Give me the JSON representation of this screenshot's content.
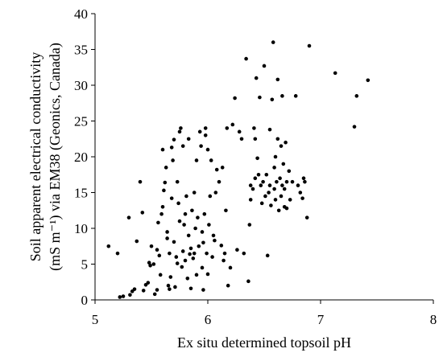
{
  "chart_data": {
    "type": "scatter",
    "xlabel": "Ex situ determined topsoil pH",
    "ylabel_line1": "Soil apparent electrical conductivity",
    "ylabel_line2": "(mS m⁻¹) via EM38 (Geonics, Canada)",
    "xlim": [
      5,
      8
    ],
    "ylim": [
      0,
      40
    ],
    "x_ticks": [
      5,
      6,
      7,
      8
    ],
    "y_ticks": [
      0,
      5,
      10,
      15,
      20,
      25,
      30,
      35,
      40
    ],
    "grid": false,
    "legend": "none",
    "point_color": "#000000",
    "points": [
      [
        5.12,
        7.5
      ],
      [
        5.2,
        6.5
      ],
      [
        5.22,
        0.4
      ],
      [
        5.25,
        0.5
      ],
      [
        5.3,
        11.5
      ],
      [
        5.31,
        0.7
      ],
      [
        5.33,
        1.2
      ],
      [
        5.35,
        1.5
      ],
      [
        5.37,
        8.2
      ],
      [
        5.4,
        16.5
      ],
      [
        5.42,
        12.2
      ],
      [
        5.43,
        1.3
      ],
      [
        5.45,
        2.1
      ],
      [
        5.47,
        2.4
      ],
      [
        5.48,
        5.2
      ],
      [
        5.49,
        4.8
      ],
      [
        5.5,
        7.5
      ],
      [
        5.52,
        5.0
      ],
      [
        5.53,
        0.8
      ],
      [
        5.55,
        1.4
      ],
      [
        5.55,
        7.0
      ],
      [
        5.56,
        10.8
      ],
      [
        5.57,
        6.2
      ],
      [
        5.58,
        3.5
      ],
      [
        5.59,
        12.0
      ],
      [
        5.6,
        13.0
      ],
      [
        5.6,
        21.0
      ],
      [
        5.61,
        15.3
      ],
      [
        5.62,
        16.4
      ],
      [
        5.63,
        18.5
      ],
      [
        5.64,
        9.5
      ],
      [
        5.64,
        8.6
      ],
      [
        5.65,
        2.0
      ],
      [
        5.66,
        1.5
      ],
      [
        5.66,
        6.5
      ],
      [
        5.67,
        3.2
      ],
      [
        5.68,
        14.2
      ],
      [
        5.68,
        21.3
      ],
      [
        5.69,
        19.5
      ],
      [
        5.7,
        22.4
      ],
      [
        5.7,
        8.1
      ],
      [
        5.71,
        1.8
      ],
      [
        5.72,
        6.0
      ],
      [
        5.73,
        5.1
      ],
      [
        5.73,
        16.5
      ],
      [
        5.74,
        13.5
      ],
      [
        5.75,
        11.0
      ],
      [
        5.75,
        23.5
      ],
      [
        5.76,
        24.0
      ],
      [
        5.77,
        4.6
      ],
      [
        5.78,
        6.8
      ],
      [
        5.78,
        21.5
      ],
      [
        5.79,
        10.5
      ],
      [
        5.8,
        12.0
      ],
      [
        5.8,
        5.5
      ],
      [
        5.81,
        14.5
      ],
      [
        5.82,
        3.0
      ],
      [
        5.83,
        9.0
      ],
      [
        5.83,
        22.5
      ],
      [
        5.84,
        6.4
      ],
      [
        5.85,
        7.2
      ],
      [
        5.85,
        1.6
      ],
      [
        5.86,
        12.5
      ],
      [
        5.87,
        5.8
      ],
      [
        5.88,
        15.0
      ],
      [
        5.88,
        6.5
      ],
      [
        5.89,
        10.0
      ],
      [
        5.9,
        19.5
      ],
      [
        5.9,
        3.5
      ],
      [
        5.91,
        11.5
      ],
      [
        5.92,
        7.5
      ],
      [
        5.93,
        23.5
      ],
      [
        5.94,
        21.5
      ],
      [
        5.95,
        9.5
      ],
      [
        5.95,
        4.5
      ],
      [
        5.96,
        1.4
      ],
      [
        5.96,
        8.0
      ],
      [
        5.97,
        12.0
      ],
      [
        5.98,
        24.0
      ],
      [
        5.98,
        23.0
      ],
      [
        5.99,
        6.5
      ],
      [
        6.0,
        3.6
      ],
      [
        6.0,
        21.0
      ],
      [
        6.01,
        10.5
      ],
      [
        6.02,
        14.5
      ],
      [
        6.03,
        19.5
      ],
      [
        6.04,
        6.0
      ],
      [
        6.05,
        9.0
      ],
      [
        6.06,
        8.3
      ],
      [
        6.07,
        15.0
      ],
      [
        6.08,
        18.2
      ],
      [
        6.1,
        16.5
      ],
      [
        6.12,
        7.6
      ],
      [
        6.13,
        18.5
      ],
      [
        6.14,
        5.5
      ],
      [
        6.15,
        6.5
      ],
      [
        6.16,
        12.5
      ],
      [
        6.17,
        24.0
      ],
      [
        6.18,
        2.0
      ],
      [
        6.2,
        4.5
      ],
      [
        6.22,
        24.5
      ],
      [
        6.24,
        28.2
      ],
      [
        6.26,
        7.0
      ],
      [
        6.28,
        23.5
      ],
      [
        6.3,
        22.5
      ],
      [
        6.32,
        6.5
      ],
      [
        6.34,
        33.7
      ],
      [
        6.36,
        2.6
      ],
      [
        6.37,
        10.5
      ],
      [
        6.38,
        14.0
      ],
      [
        6.38,
        16.0
      ],
      [
        6.4,
        15.5
      ],
      [
        6.41,
        24.0
      ],
      [
        6.42,
        17.0
      ],
      [
        6.42,
        22.5
      ],
      [
        6.43,
        31.0
      ],
      [
        6.44,
        19.8
      ],
      [
        6.45,
        17.5
      ],
      [
        6.46,
        28.3
      ],
      [
        6.47,
        16.0
      ],
      [
        6.48,
        13.5
      ],
      [
        6.49,
        16.5
      ],
      [
        6.5,
        32.7
      ],
      [
        6.51,
        14.5
      ],
      [
        6.52,
        17.5
      ],
      [
        6.53,
        6.2
      ],
      [
        6.54,
        15.0
      ],
      [
        6.55,
        23.8
      ],
      [
        6.55,
        16.0
      ],
      [
        6.56,
        13.2
      ],
      [
        6.57,
        28.0
      ],
      [
        6.58,
        36.0
      ],
      [
        6.59,
        18.5
      ],
      [
        6.59,
        15.5
      ],
      [
        6.6,
        14.0
      ],
      [
        6.6,
        20.0
      ],
      [
        6.61,
        16.5
      ],
      [
        6.62,
        22.5
      ],
      [
        6.62,
        30.8
      ],
      [
        6.63,
        12.5
      ],
      [
        6.64,
        17.0
      ],
      [
        6.65,
        21.5
      ],
      [
        6.65,
        14.5
      ],
      [
        6.66,
        16.0
      ],
      [
        6.66,
        28.5
      ],
      [
        6.67,
        19.0
      ],
      [
        6.68,
        15.5
      ],
      [
        6.68,
        13.0
      ],
      [
        6.69,
        22.0
      ],
      [
        6.7,
        16.5
      ],
      [
        6.7,
        12.8
      ],
      [
        6.72,
        18.0
      ],
      [
        6.73,
        14.0
      ],
      [
        6.75,
        16.5
      ],
      [
        6.78,
        28.5
      ],
      [
        6.8,
        16.0
      ],
      [
        6.82,
        15.0
      ],
      [
        6.84,
        14.2
      ],
      [
        6.85,
        17.0
      ],
      [
        6.86,
        16.5
      ],
      [
        6.88,
        11.5
      ],
      [
        6.9,
        35.5
      ],
      [
        7.13,
        31.7
      ],
      [
        7.3,
        24.2
      ],
      [
        7.32,
        28.5
      ],
      [
        7.42,
        30.7
      ]
    ]
  }
}
